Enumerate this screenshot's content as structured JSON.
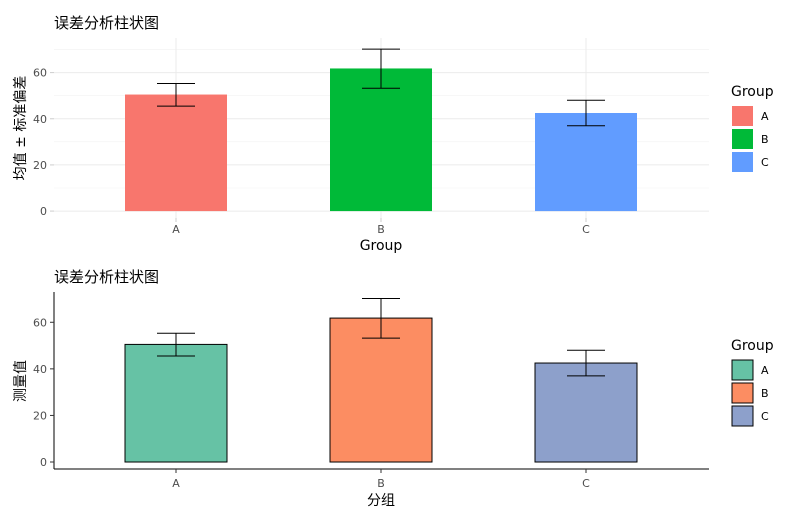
{
  "chart_data": [
    {
      "type": "bar",
      "title": "误差分析柱状图",
      "xlabel": "Group",
      "ylabel": "均值 ± 标准偏差",
      "categories": [
        "A",
        "B",
        "C"
      ],
      "values": [
        50.5,
        61.8,
        42.5
      ],
      "error_low": [
        45.5,
        53.2,
        37.0
      ],
      "error_high": [
        55.3,
        70.2,
        48.0
      ],
      "ylim": [
        -3,
        75
      ],
      "yticks": [
        0,
        20,
        40,
        60
      ],
      "grid": true,
      "bar_outline": false,
      "colors": [
        "#F8766D",
        "#00BA38",
        "#619CFF"
      ],
      "legend": {
        "title": "Group",
        "labels": [
          "A",
          "B",
          "C"
        ],
        "position": "right"
      }
    },
    {
      "type": "bar",
      "title": "误差分析柱状图",
      "xlabel": "分组",
      "ylabel": "测量值",
      "categories": [
        "A",
        "B",
        "C"
      ],
      "values": [
        50.5,
        61.8,
        42.5
      ],
      "error_low": [
        45.5,
        53.2,
        37.0
      ],
      "error_high": [
        55.3,
        70.2,
        48.0
      ],
      "ylim": [
        -3,
        73
      ],
      "yticks": [
        0,
        20,
        40,
        60
      ],
      "grid": false,
      "bar_outline": true,
      "colors": [
        "#66C2A5",
        "#FC8D62",
        "#8DA0CB"
      ],
      "legend": {
        "title": "Group",
        "labels": [
          "A",
          "B",
          "C"
        ],
        "position": "right"
      }
    }
  ]
}
